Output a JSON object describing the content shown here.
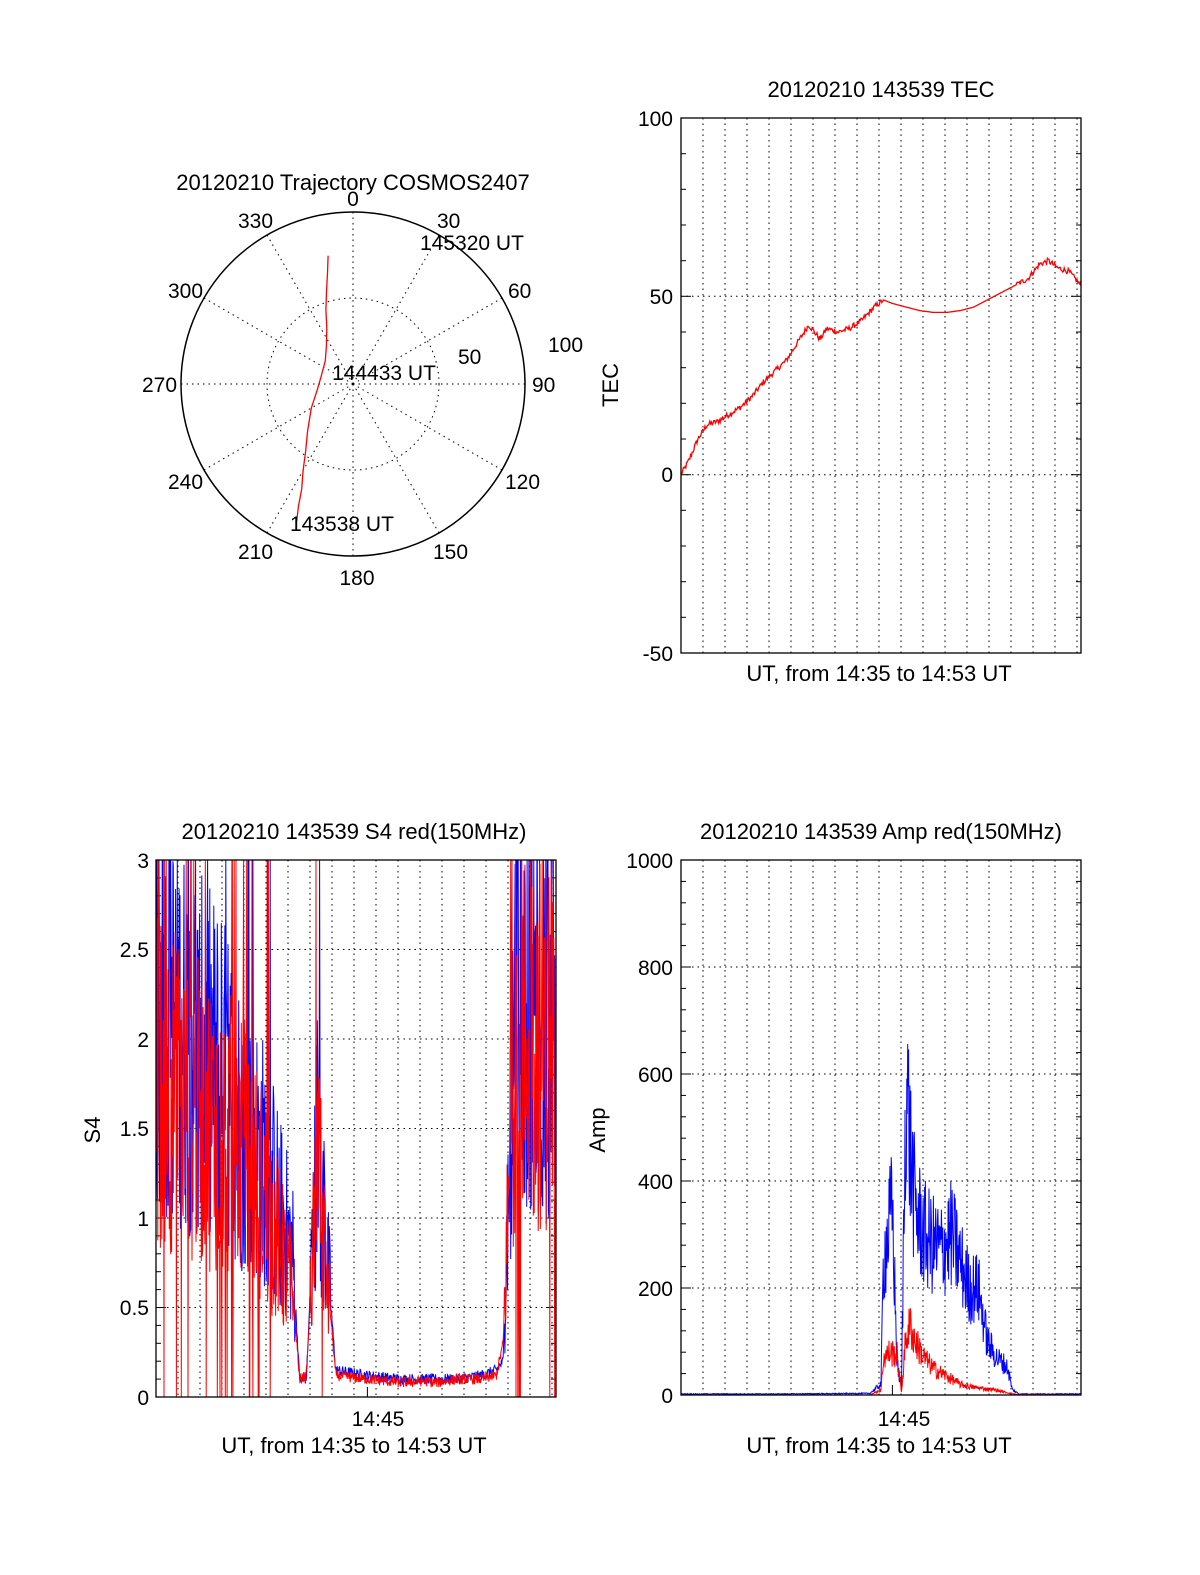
{
  "colors": {
    "red": "#ff0000",
    "blue": "#0000ff"
  },
  "chart_data": [
    {
      "type": "polar",
      "title": "20120210 Trajectory COSMOS2407",
      "azimuth_labels": [
        "0",
        "30",
        "60",
        "90",
        "120",
        "150",
        "180",
        "210",
        "240",
        "270",
        "300",
        "330"
      ],
      "radius_labels": [
        "50",
        "100"
      ],
      "trajectory": {
        "color": "red",
        "points": [
          {
            "az": 202,
            "r": 88
          },
          {
            "az": 204,
            "r": 78
          },
          {
            "az": 206,
            "r": 68
          },
          {
            "az": 210,
            "r": 58
          },
          {
            "az": 215,
            "r": 48
          },
          {
            "az": 224,
            "r": 38
          },
          {
            "az": 240,
            "r": 28
          },
          {
            "az": 261,
            "r": 21
          },
          {
            "az": 285,
            "r": 19
          },
          {
            "az": 310,
            "r": 21
          },
          {
            "az": 325,
            "r": 27
          },
          {
            "az": 335,
            "r": 36
          },
          {
            "az": 340,
            "r": 46
          },
          {
            "az": 344,
            "r": 56
          },
          {
            "az": 347,
            "r": 66
          },
          {
            "az": 349,
            "r": 76
          }
        ]
      },
      "annotations": [
        "145320 UT",
        "144433 UT",
        "143538 UT"
      ]
    },
    {
      "type": "line",
      "title": "20120210 143539 TEC",
      "xlabel": "UT, from 14:35 to 14:53 UT",
      "ylabel": "TEC",
      "xlim_minutes": [
        35.65,
        53.34
      ],
      "ylim": [
        -50,
        100
      ],
      "yticks": [
        "-50",
        "0",
        "50",
        "100"
      ],
      "series": [
        {
          "color": "red",
          "x": [
            35.65,
            36.0,
            36.4,
            36.8,
            37.3,
            37.8,
            38.3,
            38.8,
            39.3,
            39.8,
            40.3,
            40.8,
            41.3,
            41.8,
            42.1,
            42.6,
            43.1,
            43.6,
            44.2,
            44.6,
            45.0,
            45.6,
            46.2,
            46.8,
            47.4,
            48.0,
            48.6,
            49.2,
            49.8,
            50.4,
            51.0,
            51.5,
            51.9,
            52.3,
            52.8,
            53.34
          ],
          "y": [
            0,
            4,
            10,
            14,
            15,
            17,
            19,
            22,
            26,
            29,
            32,
            37,
            42,
            38,
            41,
            40,
            41,
            43,
            47,
            49,
            48,
            47,
            46,
            45.5,
            45.5,
            46,
            47,
            49,
            51,
            53,
            55,
            59,
            60,
            58,
            57,
            53
          ]
        }
      ]
    },
    {
      "type": "line",
      "title": "20120210 143539 S4 red(150MHz)",
      "xlabel": "UT, from 14:35 to 14:53 UT",
      "ylabel": "S4",
      "xlim_minutes": [
        35.65,
        53.34
      ],
      "ylim": [
        0,
        3
      ],
      "yticks": [
        "0",
        "0.5",
        "1",
        "1.5",
        "2",
        "2.5",
        "3"
      ],
      "xticks": [
        "14:45"
      ],
      "series": [
        {
          "color": "blue",
          "x": [
            35.65,
            36.5,
            37.5,
            38.5,
            39.5,
            40.5,
            41.2,
            41.7,
            42.0,
            42.3,
            42.8,
            43.6,
            45.0,
            46.5,
            47.5,
            48.0,
            49.0,
            50.0,
            50.7,
            51.0,
            51.5,
            52.0,
            52.5,
            53.34
          ],
          "y": [
            2.2,
            2.1,
            1.9,
            1.8,
            1.5,
            1.3,
            1.0,
            0.8,
            0.1,
            0.1,
            1.5,
            0.15,
            0.12,
            0.1,
            0.1,
            0.1,
            0.1,
            0.12,
            0.15,
            0.2,
            2.2,
            2.3,
            2.2,
            2.0
          ]
        },
        {
          "color": "red",
          "x": [
            35.65,
            36.5,
            37.5,
            38.5,
            39.5,
            40.5,
            41.2,
            41.7,
            42.0,
            42.3,
            42.8,
            43.6,
            45.0,
            46.5,
            47.5,
            48.0,
            49.0,
            50.0,
            50.7,
            51.0,
            51.5,
            52.0,
            52.5,
            53.34
          ],
          "y": [
            1.8,
            1.7,
            1.6,
            1.5,
            1.4,
            1.1,
            0.8,
            0.6,
            0.1,
            0.12,
            1.3,
            0.12,
            0.1,
            0.08,
            0.09,
            0.08,
            0.1,
            0.1,
            0.12,
            0.3,
            2.0,
            2.0,
            2.0,
            2.0
          ]
        }
      ]
    },
    {
      "type": "line",
      "title": "20120210 143539 Amp red(150MHz)",
      "xlabel": "UT, from 14:35 to 14:53 UT",
      "ylabel": "Amp",
      "xlim_minutes": [
        35.65,
        53.34
      ],
      "ylim": [
        0,
        1000
      ],
      "yticks": [
        "0",
        "200",
        "400",
        "600",
        "800",
        "1000"
      ],
      "xticks": [
        "14:45"
      ],
      "series": [
        {
          "color": "blue",
          "x": [
            35.65,
            40.0,
            44.0,
            44.5,
            44.6,
            44.8,
            45.0,
            45.2,
            45.4,
            45.6,
            45.8,
            46.0,
            46.4,
            46.8,
            47.2,
            47.6,
            48.0,
            48.4,
            48.8,
            49.2,
            49.6,
            49.9,
            50.1,
            50.3,
            50.6,
            53.34
          ],
          "y": [
            2,
            2,
            3,
            20,
            250,
            300,
            350,
            60,
            10,
            600,
            450,
            350,
            300,
            280,
            270,
            300,
            250,
            200,
            200,
            100,
            70,
            60,
            50,
            10,
            2,
            2
          ]
        },
        {
          "color": "red",
          "x": [
            35.65,
            44.0,
            44.5,
            44.6,
            44.9,
            45.2,
            45.4,
            45.6,
            45.8,
            46.0,
            46.4,
            46.8,
            47.2,
            47.6,
            48.0,
            48.5,
            49.0,
            49.5,
            50.0,
            50.5,
            53.34
          ],
          "y": [
            0,
            0,
            10,
            70,
            80,
            75,
            5,
            110,
            130,
            100,
            70,
            50,
            40,
            30,
            20,
            15,
            12,
            10,
            5,
            1,
            0
          ]
        }
      ]
    }
  ],
  "polar": {
    "title": "20120210 Trajectory COSMOS2407",
    "az_0": "0",
    "az_30": "30",
    "az_60": "60",
    "az_90": "90",
    "az_120": "120",
    "az_150": "150",
    "az_180": "180",
    "az_210": "210",
    "az_240": "240",
    "az_270": "270",
    "az_300": "300",
    "az_330": "330",
    "r_50": "50",
    "r_100": "100",
    "ann_end": "145320 UT",
    "ann_mid": "144433 UT",
    "ann_start": "143538 UT"
  },
  "tec": {
    "title": "20120210 143539 TEC",
    "xlabel": "UT, from 14:35 to 14:53 UT",
    "ylabel": "TEC",
    "y_m50": "-50",
    "y_0": "0",
    "y_50": "50",
    "y_100": "100"
  },
  "s4": {
    "title": "20120210 143539 S4 red(150MHz)",
    "xlabel": "UT, from 14:35 to 14:53 UT",
    "ylabel": "S4",
    "xtick": "14:45",
    "y_0": "0",
    "y_05": "0.5",
    "y_1": "1",
    "y_15": "1.5",
    "y_2": "2",
    "y_25": "2.5",
    "y_3": "3"
  },
  "amp": {
    "title": "20120210 143539 Amp red(150MHz)",
    "xlabel": "UT, from 14:35 to 14:53 UT",
    "ylabel": "Amp",
    "xtick": "14:45",
    "y_0": "0",
    "y_200": "200",
    "y_400": "400",
    "y_600": "600",
    "y_800": "800",
    "y_1000": "1000"
  }
}
